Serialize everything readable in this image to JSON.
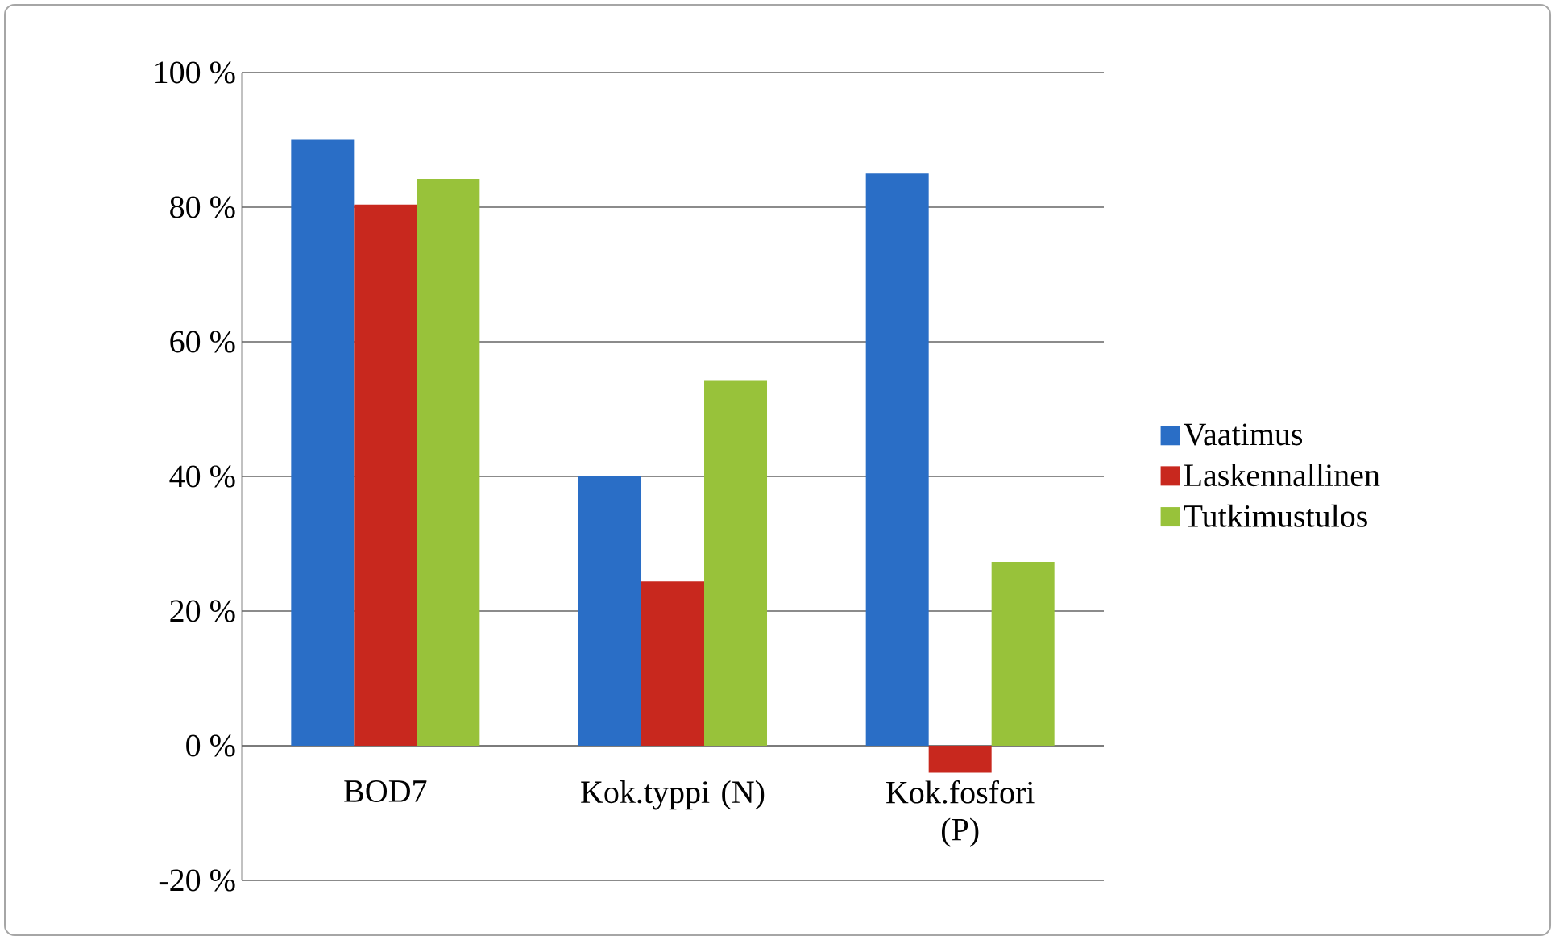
{
  "chart_data": {
    "type": "bar",
    "categories": [
      "BOD7",
      "Kok.typpi (N)",
      "Kok.fosfori (P)"
    ],
    "series": [
      {
        "name": "Vaatimus",
        "color": "#2a6ec6",
        "values": [
          90,
          40,
          85
        ]
      },
      {
        "name": "Laskennallinen",
        "color": "#c8281e",
        "values": [
          80.4,
          24.4,
          -4
        ]
      },
      {
        "name": "Tutkimustulos",
        "color": "#98c23a",
        "values": [
          84.2,
          54.3,
          27.3
        ]
      }
    ],
    "ylim": [
      -20,
      100
    ],
    "yticks": [
      {
        "value": -20,
        "label": "-20 %"
      },
      {
        "value": 0,
        "label": "0 %"
      },
      {
        "value": 20,
        "label": "20 %"
      },
      {
        "value": 40,
        "label": "40 %"
      },
      {
        "value": 60,
        "label": "60 %"
      },
      {
        "value": 80,
        "label": "80 %"
      },
      {
        "value": 100,
        "label": "100 %"
      }
    ],
    "grid": "y",
    "legend": "right"
  }
}
